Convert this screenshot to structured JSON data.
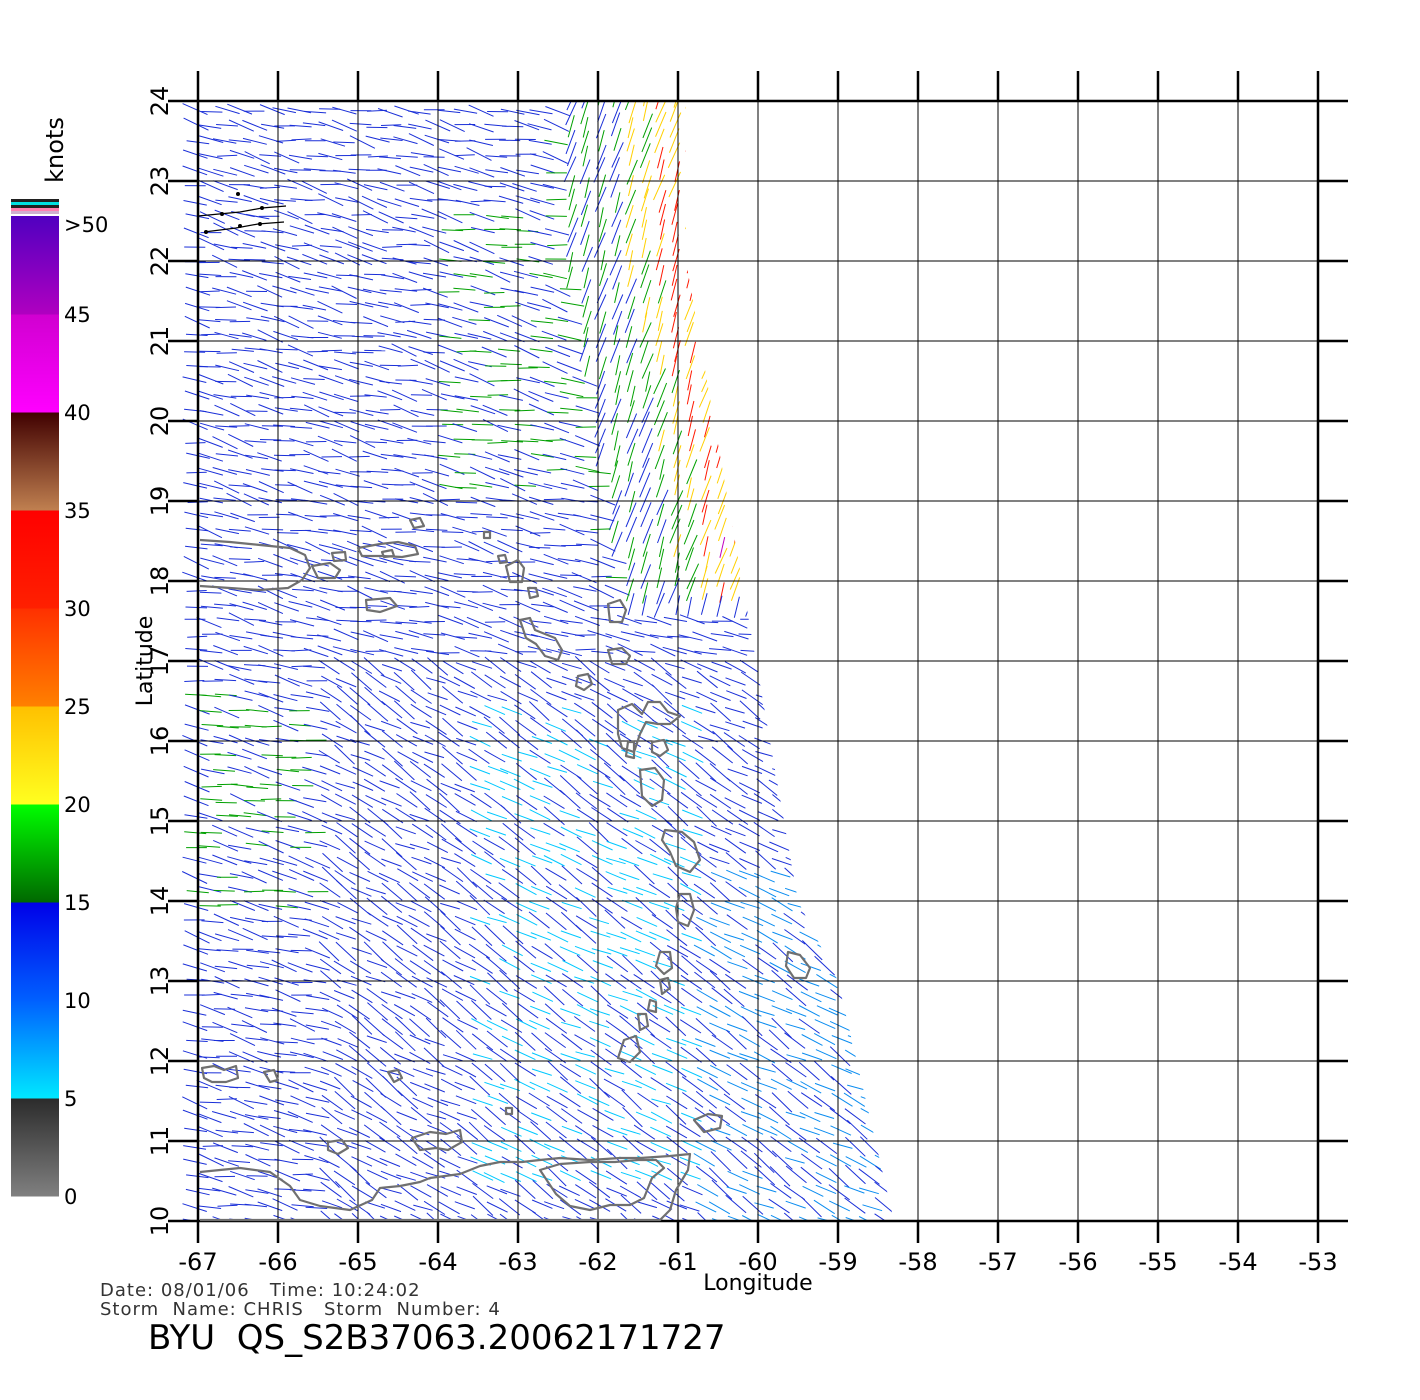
{
  "map": {
    "axes": {
      "x_label": "Longitude",
      "y_label": "Latitude",
      "x_ticks": [
        "-67",
        "-66",
        "-65",
        "-64",
        "-63",
        "-62",
        "-61",
        "-60",
        "-59",
        "-58",
        "-57",
        "-56",
        "-55",
        "-54",
        "-53"
      ],
      "y_ticks": [
        "10",
        "11",
        "12",
        "13",
        "14",
        "15",
        "16",
        "17",
        "18",
        "19",
        "20",
        "21",
        "22",
        "23",
        "24"
      ],
      "x_range": [
        -67,
        -53
      ],
      "y_range": [
        10,
        24
      ]
    },
    "colorbar": {
      "unit": "knots",
      "tick_labels": [
        "0",
        "5",
        "10",
        "15",
        "20",
        "25",
        "30",
        "35",
        "40",
        "45",
        ">50"
      ],
      "bands": [
        {
          "min": 0,
          "max": 5,
          "colors": [
            "#808080",
            "#2b2b2b"
          ]
        },
        {
          "min": 5,
          "max": 10,
          "colors": [
            "#00e8ff",
            "#0060ff"
          ]
        },
        {
          "min": 10,
          "max": 15,
          "colors": [
            "#0060ff",
            "#0000e8"
          ]
        },
        {
          "min": 15,
          "max": 20,
          "colors": [
            "#006800",
            "#00ff00"
          ]
        },
        {
          "min": 20,
          "max": 25,
          "colors": [
            "#ffff20",
            "#ffc000"
          ]
        },
        {
          "min": 25,
          "max": 30,
          "colors": [
            "#ff8000",
            "#ff3000"
          ]
        },
        {
          "min": 30,
          "max": 35,
          "colors": [
            "#ff2000",
            "#ff0000"
          ]
        },
        {
          "min": 35,
          "max": 40,
          "colors": [
            "#c08050",
            "#400000"
          ]
        },
        {
          "min": 40,
          "max": 45,
          "colors": [
            "#ff00ff",
            "#d000d0"
          ]
        },
        {
          "min": 45,
          "max": 50,
          "colors": [
            "#b000c0",
            "#5000c0"
          ]
        }
      ]
    },
    "swath": {
      "edge_lon": [
        -60.9,
        -60.9,
        -60.2,
        -59.5,
        -59.0,
        -58.3
      ],
      "edge_lat": [
        24.0,
        22.0,
        18.0,
        14.0,
        13.0,
        10.0
      ]
    },
    "wind_field": {
      "blue": "#1a2fd8",
      "cyan": "#00c8ff",
      "green": "#00a000",
      "yellow": "#ffd000",
      "red": "#ff1800",
      "magenta": "#c000c0"
    },
    "land_color": "#707070"
  },
  "info": {
    "date_label": "Date:",
    "date": "08/01/06",
    "time_label": "Time:",
    "time": "10:24:02",
    "storm_name_label": "Storm  Name:",
    "storm_name": "CHRIS",
    "storm_number_label": "Storm  Number:",
    "storm_number": "4",
    "file_title": "BYU  QS_S2B37063.20062171727"
  }
}
